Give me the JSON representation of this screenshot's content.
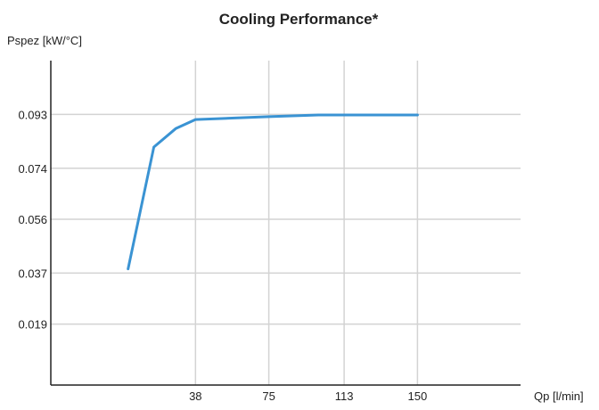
{
  "chart_data": {
    "type": "line",
    "title": "Cooling Performance*",
    "xlabel": "Qp [l/min]",
    "ylabel": "Pspez [kW/°C]",
    "xlim": [
      -35,
      202
    ],
    "ylim": [
      -0.0025,
      0.112
    ],
    "x_ticks": [
      38,
      75,
      113,
      150
    ],
    "y_ticks": [
      0.019,
      0.037,
      0.056,
      0.074,
      0.093
    ],
    "x_tick_labels": [
      "38",
      "75",
      "113",
      "150"
    ],
    "y_tick_labels": [
      "0.019",
      "0.037",
      "0.056",
      "0.074",
      "0.093"
    ],
    "grid": true,
    "series": [
      {
        "color": "#3a93d3",
        "x": [
          4,
          17,
          28,
          38,
          75,
          100,
          113,
          150
        ],
        "y": [
          0.0385,
          0.0815,
          0.088,
          0.0912,
          0.0922,
          0.0928,
          0.0928,
          0.0928
        ]
      }
    ]
  }
}
